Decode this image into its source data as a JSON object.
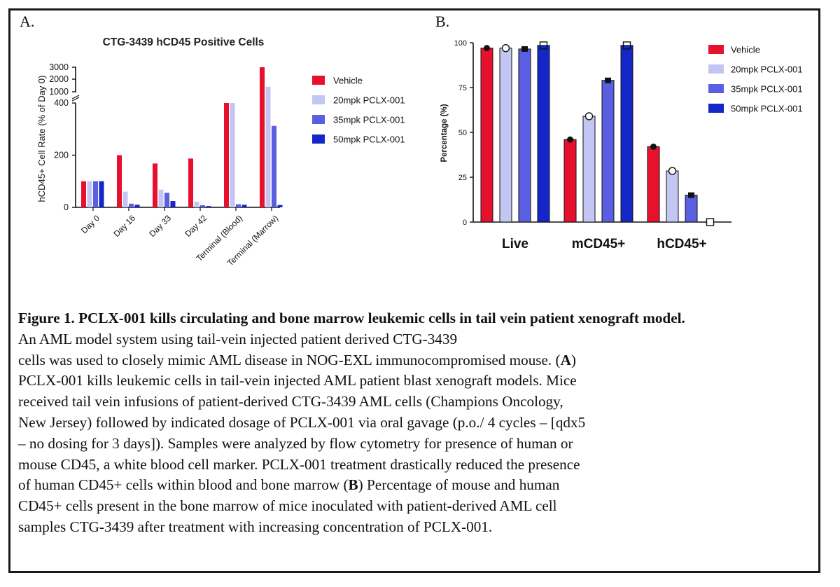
{
  "panels": {
    "a": "A.",
    "b": "B."
  },
  "chart_data": [
    {
      "type": "bar",
      "title": "CTG-3439 hCD45 Positive Cells",
      "ylabel": "hCD45+ Cell Rate (% of Day 0)",
      "xlabel": "",
      "categories": [
        "Day 0",
        "Day 16",
        "Day 33",
        "Day 42",
        "Terminal (Blood)",
        "Terminal (Marrow)"
      ],
      "series": [
        {
          "name": "Vehicle",
          "color": "#e8112d",
          "values": [
            100,
            200,
            168,
            187,
            400,
            3000
          ]
        },
        {
          "name": "20mpk PCLX-001",
          "color": "#c3c6f2",
          "values": [
            100,
            60,
            68,
            22,
            400,
            1400
          ]
        },
        {
          "name": "35mpk PCLX-001",
          "color": "#5a5ee0",
          "values": [
            100,
            14,
            56,
            8,
            12,
            312
          ]
        },
        {
          "name": "50mpk PCLX-001",
          "color": "#1426c8",
          "values": [
            100,
            10,
            24,
            5,
            10,
            9
          ]
        }
      ],
      "yticks_lower": [
        0,
        200,
        400
      ],
      "yticks_upper": [
        1000,
        2000,
        3000
      ],
      "axis_break": [
        400,
        1000
      ],
      "legend_position": "right",
      "grid": false
    },
    {
      "type": "bar",
      "ylabel": "Percentage (%)",
      "xlabel": "",
      "categories": [
        "Live",
        "mCD45+",
        "hCD45+"
      ],
      "series": [
        {
          "name": "Vehicle",
          "color": "#e8112d",
          "values": [
            97,
            46,
            42
          ]
        },
        {
          "name": "20mpk PCLX-001",
          "color": "#c3c6f2",
          "values": [
            97,
            59,
            28.5
          ]
        },
        {
          "name": "35mpk PCLX-001",
          "color": "#5a5ee0",
          "values": [
            96.5,
            79,
            15
          ]
        },
        {
          "name": "50mpk PCLX-001",
          "color": "#1426c8",
          "values": [
            98.5,
            98.5,
            0
          ]
        }
      ],
      "ylim": [
        0,
        100
      ],
      "yticks": [
        0,
        25,
        50,
        75,
        100
      ],
      "legend_position": "right",
      "grid": false
    }
  ],
  "caption": {
    "title": "Figure 1. PCLX-001 kills circulating and bone marrow leukemic cells in tail vein patient xenograft model.",
    "lines": [
      "An AML model system using tail-vein injected patient derived CTG-3439",
      "cells was used to closely mimic AML disease in NOG-EXL immunocompromised mouse. (",
      "A",
      ")",
      "PCLX-001 kills leukemic cells in tail-vein injected AML patient blast xenograft models. Mice",
      "received tail vein infusions of patient-derived CTG-3439 AML cells (Champions Oncology,",
      "New Jersey) followed by indicated dosage of PCLX-001 via oral gavage (p.o./ 4 cycles – [qdx5",
      "– no dosing for 3 days]). Samples were analyzed by flow cytometry for presence of human or",
      "mouse CD45, a white blood cell marker. PCLX-001 treatment drastically reduced the presence",
      "of human CD45+ cells within blood and bone marrow (",
      "B",
      ") Percentage of mouse and human",
      "CD45+ cells present in the bone marrow of mice inoculated with patient-derived AML cell",
      "samples CTG-3439 after treatment with increasing concentration of PCLX-001."
    ]
  }
}
